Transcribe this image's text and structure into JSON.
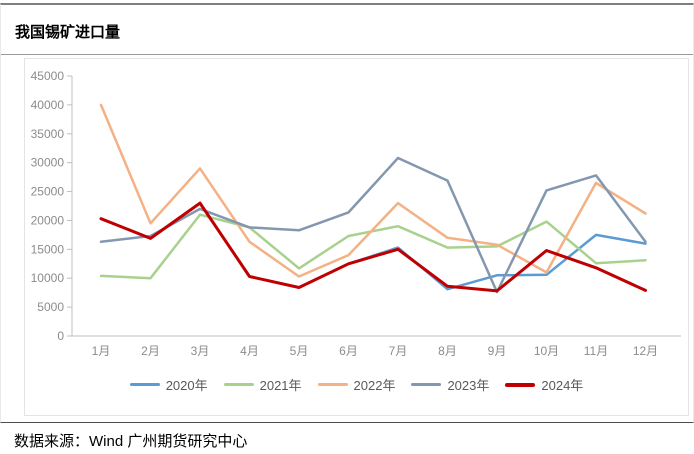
{
  "header": {
    "title": "我国锡矿进口量"
  },
  "footer": {
    "source": "数据来源：Wind 广州期货研究中心"
  },
  "colors": {
    "axis_line": "#bfbfbf",
    "axis_label": "#8c8c8c",
    "legend_text": "#595959"
  },
  "chart_data": {
    "type": "line",
    "title": "我国锡矿进口量",
    "xlabel": "",
    "ylabel": "",
    "categories": [
      "1月",
      "2月",
      "3月",
      "4月",
      "5月",
      "6月",
      "7月",
      "8月",
      "9月",
      "10月",
      "11月",
      "12月"
    ],
    "series": [
      {
        "name": "2020年",
        "color": "#5B9BD5",
        "thick": false,
        "values": [
          20300,
          16900,
          23000,
          10300,
          8400,
          12500,
          15300,
          8100,
          10500,
          10600,
          17500,
          16000
        ]
      },
      {
        "name": "2021年",
        "color": "#A9D18E",
        "thick": false,
        "values": [
          10400,
          10000,
          21000,
          18800,
          11700,
          17300,
          19000,
          15300,
          15500,
          19800,
          12600,
          13100
        ]
      },
      {
        "name": "2022年",
        "color": "#F4B183",
        "thick": false,
        "values": [
          40000,
          19500,
          29000,
          16300,
          10300,
          14000,
          23000,
          17000,
          15800,
          11000,
          26500,
          21200
        ]
      },
      {
        "name": "2023年",
        "color": "#8497B0",
        "thick": false,
        "values": [
          16300,
          17300,
          22000,
          18800,
          18300,
          21400,
          30800,
          26900,
          7600,
          25200,
          27800,
          16300
        ]
      },
      {
        "name": "2024年",
        "color": "#C00000",
        "thick": true,
        "values": [
          20300,
          16900,
          23000,
          10300,
          8400,
          12500,
          15000,
          8600,
          7800,
          14800,
          11800,
          7900
        ]
      }
    ],
    "ylim": [
      0,
      45000
    ],
    "y_ticks": [
      0,
      5000,
      10000,
      15000,
      20000,
      25000,
      30000,
      35000,
      40000,
      45000
    ],
    "grid": false,
    "legend_position": "bottom"
  }
}
